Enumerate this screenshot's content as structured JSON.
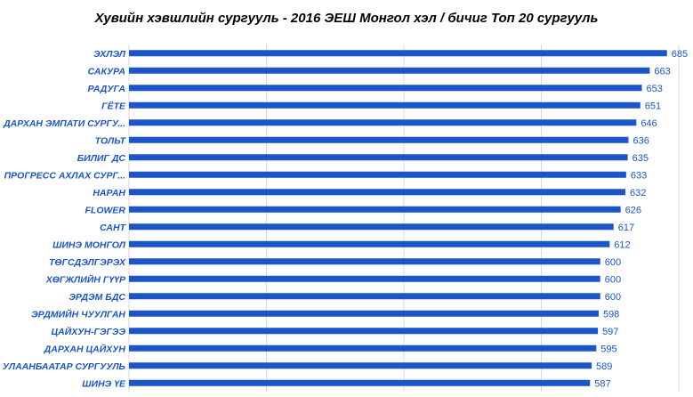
{
  "chart_data": {
    "type": "bar",
    "orientation": "horizontal",
    "title": "Хувийн хэвшлийн сургууль - 2016 ЭЕШ Монгол хэл / бичиг Топ 20 сургууль",
    "categories": [
      "ЭХЛЭЛ",
      "САКУРА",
      "РАДУГА",
      "ГЁТЕ",
      "ДАРХАН ЭМПАТИ СУРГУ...",
      "ТОЛЬТ",
      "БИЛИГ ДС",
      "ПРОГРЕСС АХЛАХ СУРГ...",
      "НАРАН",
      "FLOWER",
      "САНТ",
      "ШИНЭ МОНГОЛ",
      "ТӨГСДЭЛГЭРЭХ",
      "ХӨГЖЛИЙН ГҮҮР",
      "ЭРДЭМ БДС",
      "ЭРДМИЙН ЧУУЛГАН",
      "ЦАЙХУН-ГЭГЭЭ",
      "ДАРХАН ЦАЙХУН",
      "УЛААНБААТАР СУРГУУЛЬ",
      "ШИНЭ ҮЕ"
    ],
    "values": [
      685,
      663,
      653,
      651,
      646,
      636,
      635,
      633,
      632,
      626,
      617,
      612,
      600,
      600,
      600,
      598,
      597,
      595,
      589,
      587
    ],
    "xlim": [
      0,
      700
    ],
    "grid": true,
    "bar_color": "#1a56c8",
    "label_color": "#1a56c8",
    "value_color": "#1a56c8",
    "grid_color": "#d9d9d9"
  }
}
